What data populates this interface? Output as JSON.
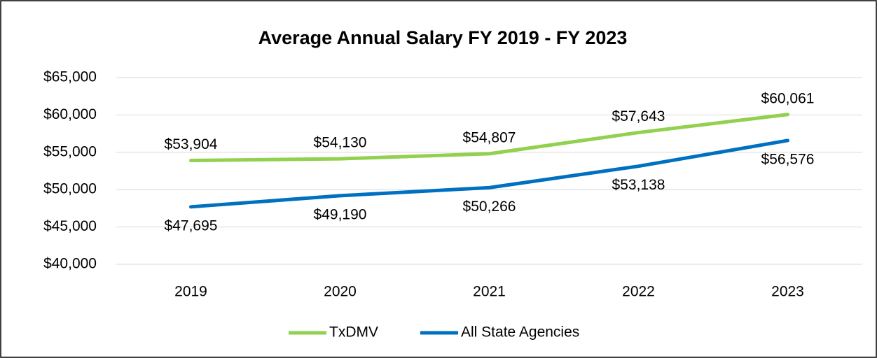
{
  "chart_data": {
    "type": "line",
    "title": "Average Annual Salary FY 2019 - FY 2023",
    "categories": [
      "2019",
      "2020",
      "2021",
      "2022",
      "2023"
    ],
    "series": [
      {
        "name": "TxDMV",
        "color": "#92d050",
        "values": [
          53904,
          54130,
          54807,
          57643,
          60061
        ],
        "value_labels": [
          "$53,904",
          "$54,130",
          "$54,807",
          "$57,643",
          "$60,061"
        ]
      },
      {
        "name": "All State Agencies",
        "color": "#0070c0",
        "values": [
          47695,
          49190,
          50266,
          53138,
          56576
        ],
        "value_labels": [
          "$47,695",
          "$49,190",
          "$50,266",
          "$53,138",
          "$56,576"
        ]
      }
    ],
    "ylim": [
      40000,
      65000
    ],
    "yticks": [
      {
        "value": 40000,
        "label": "$40,000"
      },
      {
        "value": 45000,
        "label": "$45,000"
      },
      {
        "value": 50000,
        "label": "$50,000"
      },
      {
        "value": 55000,
        "label": "$55,000"
      },
      {
        "value": 60000,
        "label": "$60,000"
      },
      {
        "value": 65000,
        "label": "$65,000"
      }
    ],
    "grid": true,
    "legend": "bottom"
  }
}
